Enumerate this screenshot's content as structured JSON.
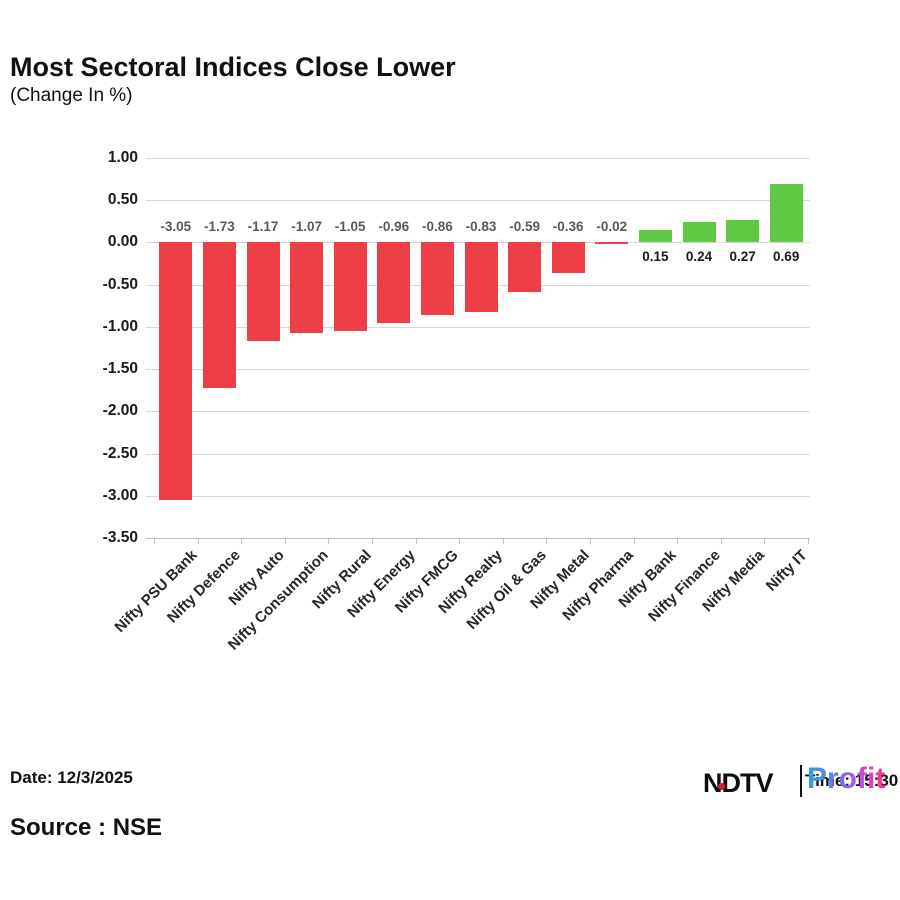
{
  "title": "Most Sectoral Indices Close Lower",
  "subtitle": "(Change In %)",
  "footer": {
    "date": "Date: 12/3/2025",
    "source": "Source : NSE",
    "time": "Time: 15:30"
  },
  "logo": {
    "ndtv": "NDTV",
    "profit": "Profit"
  },
  "chart_data": {
    "type": "bar",
    "title": "Most Sectoral Indices Close Lower",
    "subtitle": "(Change In %)",
    "categories": [
      "Nifty PSU Bank",
      "Nifty Defence",
      "Nifty Auto",
      "Nifty Consumption",
      "Nifty Rural",
      "Nifty Energy",
      "Nifty FMCG",
      "Nifty Realty",
      "Nifty Oil & Gas",
      "Nifty Metal",
      "Nifty Pharma",
      "Nifty Bank",
      "Nifty Finance",
      "Nifty Media",
      "Nifty IT"
    ],
    "values": [
      -3.05,
      -1.73,
      -1.17,
      -1.07,
      -1.05,
      -0.96,
      -0.86,
      -0.83,
      -0.59,
      -0.36,
      -0.02,
      0.15,
      0.24,
      0.27,
      0.69
    ],
    "xlabel": "",
    "ylabel": "Change In %",
    "ylim": [
      -3.5,
      1.0
    ],
    "yticks": [
      1.0,
      0.5,
      0.0,
      -0.5,
      -1.0,
      -1.5,
      -2.0,
      -2.5,
      -3.0,
      -3.5
    ],
    "grid": true,
    "legend": "none",
    "bar_colors": {
      "negative": "#ee3f47",
      "positive": "#5ec943"
    },
    "value_label_colors": {
      "negative": "#595959",
      "positive": "#1a1a1a"
    }
  }
}
